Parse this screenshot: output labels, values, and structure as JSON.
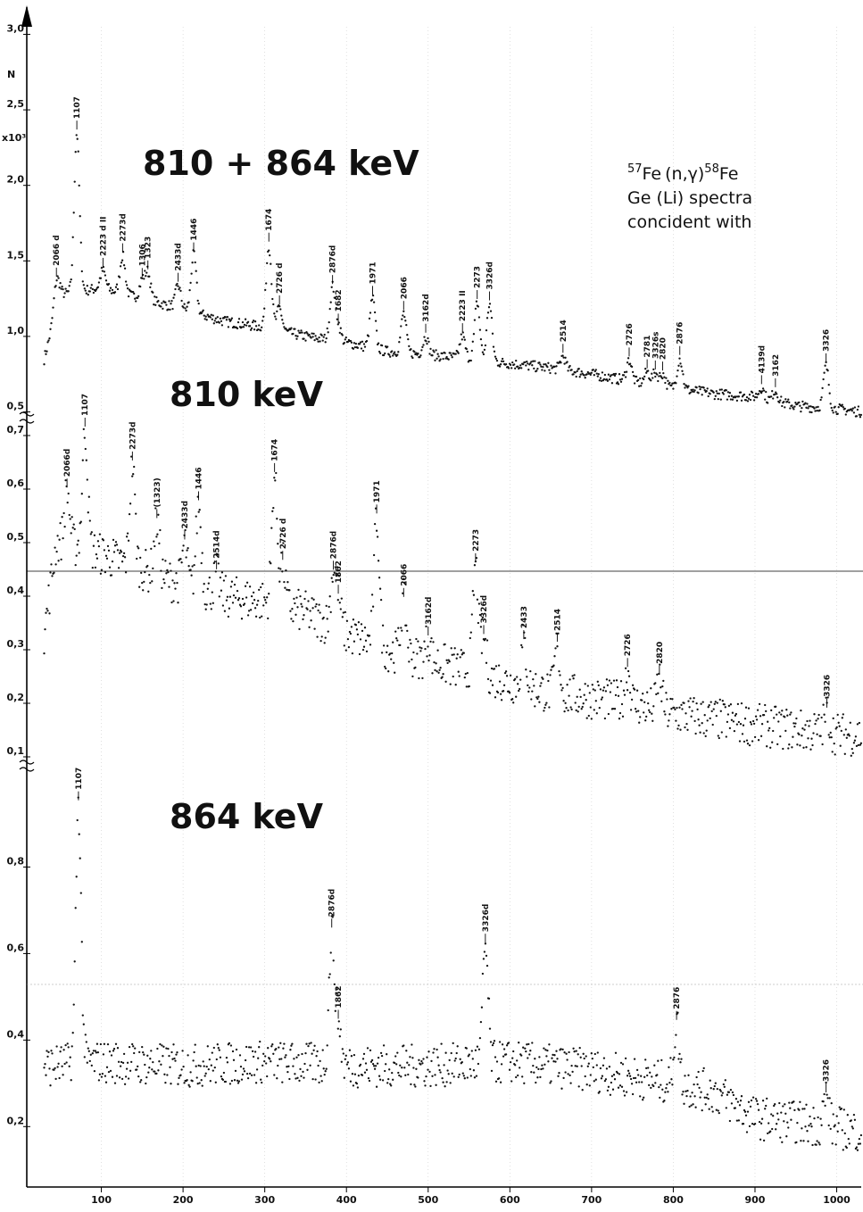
{
  "chart_data": [
    {
      "type": "scatter",
      "title": "810 + 864 keV",
      "ylabel": "N",
      "y_multiplier_label": "x10³",
      "ylim": [
        0.45,
        3.05
      ],
      "yticks": [
        {
          "v": 0.5,
          "t": "0,5"
        },
        {
          "v": 1.0,
          "t": "1,0"
        },
        {
          "v": 1.5,
          "t": "1,5"
        },
        {
          "v": 2.0,
          "t": "2,0"
        },
        {
          "v": 2.5,
          "t": "2,5"
        },
        {
          "v": 3.0,
          "t": "3,0"
        }
      ],
      "baseline": [
        [
          30,
          0.85
        ],
        [
          50,
          1.28
        ],
        [
          100,
          1.32
        ],
        [
          200,
          1.18
        ],
        [
          250,
          1.1
        ],
        [
          300,
          1.06
        ],
        [
          350,
          1.0
        ],
        [
          400,
          0.96
        ],
        [
          450,
          0.9
        ],
        [
          500,
          0.88
        ],
        [
          550,
          0.85
        ],
        [
          600,
          0.82
        ],
        [
          650,
          0.79
        ],
        [
          700,
          0.75
        ],
        [
          750,
          0.7
        ],
        [
          800,
          0.66
        ],
        [
          850,
          0.62
        ],
        [
          900,
          0.6
        ],
        [
          950,
          0.54
        ],
        [
          1000,
          0.52
        ],
        [
          1030,
          0.5
        ]
      ],
      "noise": 0.035,
      "peaks": [
        {
          "x": 45,
          "amp": 0.2,
          "label": "2066 d"
        },
        {
          "x": 70,
          "amp": 1.05,
          "label": "1107"
        },
        {
          "x": 102,
          "amp": 0.12,
          "label": "2223 d II"
        },
        {
          "x": 126,
          "amp": 0.25,
          "label": "2273d"
        },
        {
          "x": 150,
          "amp": 0.12,
          "label": "1306"
        },
        {
          "x": 157,
          "amp": 0.18,
          "label": "1323"
        },
        {
          "x": 194,
          "amp": 0.15,
          "label": "2433d"
        },
        {
          "x": 213,
          "amp": 0.38,
          "label": "1446"
        },
        {
          "x": 305,
          "amp": 0.55,
          "label": "1674"
        },
        {
          "x": 318,
          "amp": 0.15,
          "label": "2726 d"
        },
        {
          "x": 383,
          "amp": 0.35,
          "label": "2876d"
        },
        {
          "x": 390,
          "amp": 0.1,
          "label": "1682"
        },
        {
          "x": 432,
          "amp": 0.33,
          "label": "1971"
        },
        {
          "x": 470,
          "amp": 0.26,
          "label": "2066"
        },
        {
          "x": 497,
          "amp": 0.12,
          "label": "3162d"
        },
        {
          "x": 542,
          "amp": 0.15,
          "label": "2223 II"
        },
        {
          "x": 560,
          "amp": 0.38,
          "label": "2273"
        },
        {
          "x": 575,
          "amp": 0.38,
          "label": "3326d"
        },
        {
          "x": 665,
          "amp": 0.09,
          "label": "2514"
        },
        {
          "x": 746,
          "amp": 0.14,
          "label": "2726"
        },
        {
          "x": 768,
          "amp": 0.08,
          "label": "2781"
        },
        {
          "x": 778,
          "amp": 0.08,
          "label": "3326s"
        },
        {
          "x": 787,
          "amp": 0.08,
          "label": "2820"
        },
        {
          "x": 808,
          "amp": 0.2,
          "label": "2876"
        },
        {
          "x": 908,
          "amp": 0.07,
          "label": "4139d"
        },
        {
          "x": 925,
          "amp": 0.07,
          "label": "3162"
        },
        {
          "x": 987,
          "amp": 0.28,
          "label": "3326"
        }
      ]
    },
    {
      "type": "scatter",
      "title": "810 keV",
      "ylim": [
        0.08,
        0.73
      ],
      "yticks": [
        {
          "v": 0.1,
          "t": "0,1"
        },
        {
          "v": 0.2,
          "t": "0,2"
        },
        {
          "v": 0.3,
          "t": "0,3"
        },
        {
          "v": 0.4,
          "t": "0,4"
        },
        {
          "v": 0.5,
          "t": "0,5"
        },
        {
          "v": 0.6,
          "t": "0,6"
        },
        {
          "v": 0.7,
          "t": "0,7"
        }
      ],
      "baseline": [
        [
          30,
          0.33
        ],
        [
          45,
          0.5
        ],
        [
          80,
          0.49
        ],
        [
          150,
          0.45
        ],
        [
          200,
          0.42
        ],
        [
          250,
          0.4
        ],
        [
          300,
          0.39
        ],
        [
          350,
          0.37
        ],
        [
          400,
          0.33
        ],
        [
          450,
          0.3
        ],
        [
          500,
          0.28
        ],
        [
          550,
          0.26
        ],
        [
          600,
          0.24
        ],
        [
          650,
          0.22
        ],
        [
          700,
          0.21
        ],
        [
          750,
          0.2
        ],
        [
          800,
          0.18
        ],
        [
          850,
          0.17
        ],
        [
          900,
          0.16
        ],
        [
          950,
          0.15
        ],
        [
          1030,
          0.14
        ]
      ],
      "noise": 0.04,
      "peaks": [
        {
          "x": 58,
          "amp": 0.1,
          "label": "2066d"
        },
        {
          "x": 80,
          "amp": 0.22,
          "label": "1107"
        },
        {
          "x": 138,
          "amp": 0.19,
          "label": "2273d"
        },
        {
          "x": 168,
          "amp": 0.1,
          "label": "(1323)"
        },
        {
          "x": 202,
          "amp": 0.08,
          "label": "2433d"
        },
        {
          "x": 219,
          "amp": 0.16,
          "label": "1446"
        },
        {
          "x": 241,
          "amp": 0.04,
          "label": "2514d"
        },
        {
          "x": 312,
          "amp": 0.24,
          "label": "1674"
        },
        {
          "x": 322,
          "amp": 0.08,
          "label": "2726 d"
        },
        {
          "x": 384,
          "amp": 0.1,
          "label": "2876d"
        },
        {
          "x": 390,
          "amp": 0.06,
          "label": "1862"
        },
        {
          "x": 437,
          "amp": 0.24,
          "label": "1971"
        },
        {
          "x": 470,
          "amp": 0.1,
          "label": "2066"
        },
        {
          "x": 500,
          "amp": 0.04,
          "label": "3162d"
        },
        {
          "x": 558,
          "amp": 0.2,
          "label": "2273"
        },
        {
          "x": 568,
          "amp": 0.07,
          "label": "3326d"
        },
        {
          "x": 617,
          "amp": 0.08,
          "label": "2433"
        },
        {
          "x": 658,
          "amp": 0.09,
          "label": "2514"
        },
        {
          "x": 744,
          "amp": 0.06,
          "label": "2726"
        },
        {
          "x": 783,
          "amp": 0.06,
          "label": "2820"
        },
        {
          "x": 988,
          "amp": 0.04,
          "label": "3326"
        }
      ]
    },
    {
      "type": "scatter",
      "title": "864 keV",
      "xlim": [
        0,
        1030
      ],
      "xticks": [
        100,
        200,
        300,
        400,
        500,
        600,
        700,
        800,
        900,
        1000
      ],
      "ylim": [
        0.05,
        1.03
      ],
      "yticks": [
        {
          "v": 0.2,
          "t": "0,2"
        },
        {
          "v": 0.4,
          "t": "0,4"
        },
        {
          "v": 0.6,
          "t": "0,6"
        },
        {
          "v": 0.8,
          "t": "0,8"
        }
      ],
      "baseline": [
        [
          30,
          0.34
        ],
        [
          100,
          0.35
        ],
        [
          200,
          0.34
        ],
        [
          300,
          0.35
        ],
        [
          400,
          0.34
        ],
        [
          500,
          0.34
        ],
        [
          600,
          0.35
        ],
        [
          700,
          0.33
        ],
        [
          800,
          0.3
        ],
        [
          850,
          0.28
        ],
        [
          900,
          0.22
        ],
        [
          950,
          0.21
        ],
        [
          1030,
          0.19
        ]
      ],
      "noise": 0.05,
      "peaks": [
        {
          "x": 72,
          "amp": 0.6,
          "label": "1107"
        },
        {
          "x": 382,
          "amp": 0.31,
          "label": "2876d"
        },
        {
          "x": 390,
          "amp": 0.1,
          "label": "1862"
        },
        {
          "x": 570,
          "amp": 0.27,
          "label": "3326d"
        },
        {
          "x": 804,
          "amp": 0.14,
          "label": "2876"
        },
        {
          "x": 987,
          "amp": 0.07,
          "label": "3326"
        }
      ]
    }
  ],
  "reaction": {
    "pre_a": "57",
    "el_a": "Fe",
    "mid": "(n,γ)",
    "pre_b": "58",
    "el_b": "Fe"
  },
  "annotation_lines": [
    "Ge (Li) spectra",
    "concident with"
  ]
}
